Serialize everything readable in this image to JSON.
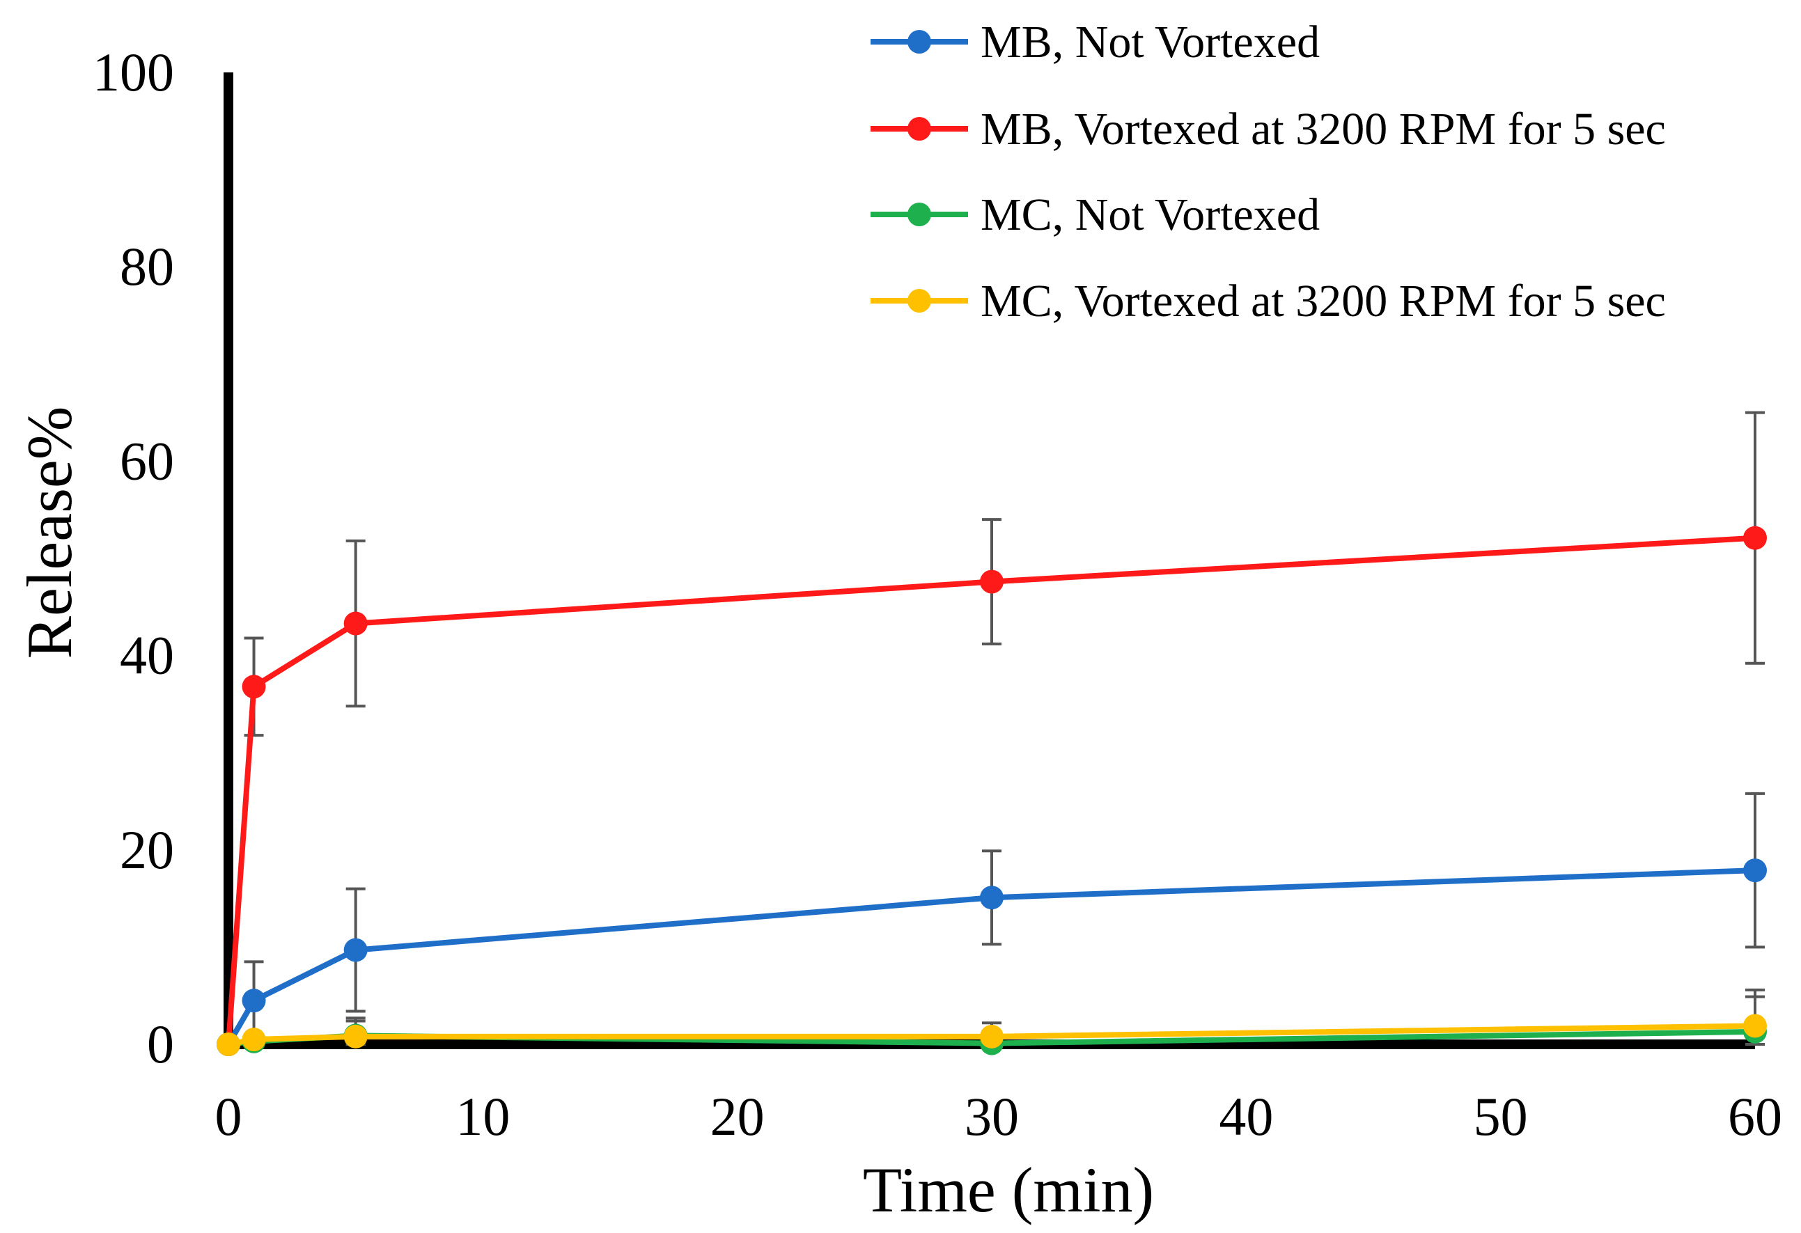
{
  "chart_data": {
    "type": "line",
    "title": "",
    "xlabel": "Time (min)",
    "ylabel": "Release%",
    "xlim": [
      0,
      60
    ],
    "ylim": [
      0,
      100
    ],
    "x_ticks": [
      0,
      10,
      20,
      30,
      40,
      50,
      60
    ],
    "y_ticks": [
      0,
      20,
      40,
      60,
      80,
      100
    ],
    "grid": false,
    "legend_position": "top-right",
    "x": [
      0,
      1,
      5,
      30,
      60
    ],
    "series": [
      {
        "name": "MB, Not Vortexed",
        "color": "#1f6fc9",
        "values": [
          0,
          4.5,
          9.7,
          15.1,
          17.9
        ],
        "errors": [
          0,
          4.0,
          6.3,
          4.8,
          7.9
        ]
      },
      {
        "name": "MB, Vortexed at 3200 RPM for 5 sec",
        "color": "#ff1a1a",
        "values": [
          0,
          36.8,
          43.3,
          47.6,
          52.1
        ],
        "errors": [
          0,
          5.0,
          8.5,
          6.4,
          12.9
        ]
      },
      {
        "name": "MC, Not Vortexed",
        "color": "#1db04d",
        "values": [
          0,
          0.3,
          0.9,
          0.1,
          1.3
        ],
        "errors": [
          0,
          0.3,
          1.5,
          1.2,
          3.6
        ]
      },
      {
        "name": "MC, Vortexed at 3200 RPM for 5 sec",
        "color": "#ffc000",
        "values": [
          0,
          0.5,
          0.8,
          0.8,
          1.9
        ],
        "errors": [
          0,
          0.3,
          1.9,
          1.4,
          3.7
        ]
      }
    ]
  }
}
